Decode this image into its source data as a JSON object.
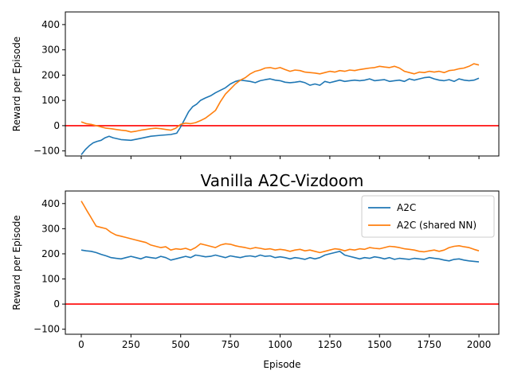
{
  "chart_data": [
    {
      "type": "line",
      "title": "",
      "xlabel": "",
      "ylabel": "Reward per Episode",
      "xlim": [
        -80,
        2100
      ],
      "ylim": [
        -120,
        450
      ],
      "xticks": [
        0,
        250,
        500,
        750,
        1000,
        1250,
        1500,
        1750,
        2000
      ],
      "yticks": [
        -100,
        0,
        100,
        200,
        300,
        400
      ],
      "show_x_tick_labels": false,
      "grid": false,
      "legend": "none",
      "hline": {
        "y": 0,
        "color": "#ff0000"
      },
      "series": [
        {
          "name": "",
          "color": "#1f77b4",
          "x": [
            0,
            20,
            40,
            60,
            80,
            100,
            120,
            140,
            160,
            200,
            250,
            300,
            350,
            400,
            450,
            480,
            500,
            520,
            540,
            560,
            580,
            600,
            625,
            650,
            675,
            700,
            725,
            750,
            775,
            800,
            825,
            850,
            875,
            900,
            925,
            950,
            975,
            1000,
            1025,
            1050,
            1075,
            1100,
            1125,
            1150,
            1175,
            1200,
            1225,
            1250,
            1275,
            1300,
            1325,
            1350,
            1375,
            1400,
            1425,
            1450,
            1475,
            1500,
            1525,
            1550,
            1575,
            1600,
            1625,
            1650,
            1675,
            1700,
            1725,
            1750,
            1775,
            1800,
            1825,
            1850,
            1875,
            1900,
            1925,
            1950,
            1975,
            2000
          ],
          "values": [
            -115,
            -95,
            -80,
            -68,
            -62,
            -58,
            -48,
            -42,
            -48,
            -55,
            -58,
            -50,
            -42,
            -38,
            -35,
            -30,
            -5,
            25,
            55,
            75,
            85,
            100,
            110,
            118,
            130,
            140,
            150,
            165,
            175,
            180,
            178,
            175,
            170,
            178,
            182,
            185,
            180,
            178,
            172,
            170,
            172,
            175,
            170,
            160,
            165,
            160,
            175,
            170,
            175,
            180,
            175,
            178,
            180,
            178,
            180,
            185,
            178,
            180,
            182,
            175,
            178,
            180,
            175,
            185,
            180,
            185,
            190,
            192,
            185,
            180,
            178,
            182,
            175,
            185,
            180,
            178,
            180,
            188
          ]
        },
        {
          "name": "",
          "color": "#ff7f0e",
          "x": [
            0,
            25,
            50,
            75,
            100,
            125,
            150,
            175,
            200,
            225,
            250,
            275,
            300,
            325,
            350,
            375,
            400,
            425,
            450,
            475,
            500,
            525,
            550,
            575,
            600,
            625,
            650,
            675,
            700,
            725,
            750,
            775,
            800,
            825,
            850,
            875,
            900,
            925,
            950,
            975,
            1000,
            1025,
            1050,
            1075,
            1100,
            1125,
            1150,
            1175,
            1200,
            1225,
            1250,
            1275,
            1300,
            1325,
            1350,
            1375,
            1400,
            1425,
            1450,
            1475,
            1500,
            1525,
            1550,
            1575,
            1600,
            1625,
            1650,
            1675,
            1700,
            1725,
            1750,
            1775,
            1800,
            1825,
            1850,
            1875,
            1900,
            1925,
            1950,
            1975,
            2000
          ],
          "values": [
            15,
            8,
            5,
            0,
            -5,
            -10,
            -12,
            -15,
            -18,
            -20,
            -25,
            -22,
            -18,
            -15,
            -12,
            -10,
            -12,
            -15,
            -18,
            -10,
            5,
            10,
            8,
            12,
            20,
            30,
            45,
            60,
            95,
            125,
            145,
            165,
            180,
            190,
            205,
            215,
            220,
            228,
            230,
            225,
            230,
            222,
            215,
            220,
            218,
            212,
            210,
            208,
            205,
            210,
            215,
            212,
            218,
            215,
            220,
            218,
            222,
            225,
            228,
            230,
            235,
            232,
            230,
            235,
            228,
            215,
            210,
            205,
            212,
            210,
            215,
            212,
            215,
            210,
            218,
            220,
            225,
            228,
            235,
            245,
            240
          ]
        }
      ]
    },
    {
      "type": "line",
      "title": "Vanilla A2C-Vizdoom",
      "xlabel": "Episode",
      "ylabel": "Reward per Episode",
      "xlim": [
        -80,
        2100
      ],
      "ylim": [
        -120,
        450
      ],
      "xticks": [
        0,
        250,
        500,
        750,
        1000,
        1250,
        1500,
        1750,
        2000
      ],
      "yticks": [
        -100,
        0,
        100,
        200,
        300,
        400
      ],
      "show_x_tick_labels": true,
      "grid": false,
      "legend": "top-right",
      "hline": {
        "y": 0,
        "color": "#ff0000"
      },
      "series": [
        {
          "name": "A2C",
          "color": "#1f77b4",
          "x": [
            0,
            25,
            50,
            75,
            100,
            125,
            150,
            175,
            200,
            225,
            250,
            275,
            300,
            325,
            350,
            375,
            400,
            425,
            450,
            475,
            500,
            525,
            550,
            575,
            600,
            625,
            650,
            675,
            700,
            725,
            750,
            775,
            800,
            825,
            850,
            875,
            900,
            925,
            950,
            975,
            1000,
            1025,
            1050,
            1075,
            1100,
            1125,
            1150,
            1175,
            1200,
            1225,
            1250,
            1275,
            1300,
            1325,
            1350,
            1375,
            1400,
            1425,
            1450,
            1475,
            1500,
            1525,
            1550,
            1575,
            1600,
            1625,
            1650,
            1675,
            1700,
            1725,
            1750,
            1775,
            1800,
            1825,
            1850,
            1875,
            1900,
            1925,
            1950,
            1975,
            2000
          ],
          "values": [
            215,
            212,
            210,
            205,
            198,
            192,
            185,
            182,
            180,
            185,
            190,
            185,
            180,
            188,
            185,
            182,
            190,
            185,
            175,
            180,
            185,
            190,
            185,
            195,
            192,
            188,
            190,
            195,
            190,
            185,
            192,
            188,
            185,
            190,
            192,
            188,
            195,
            190,
            192,
            185,
            188,
            185,
            180,
            185,
            182,
            178,
            185,
            180,
            185,
            195,
            200,
            205,
            210,
            195,
            190,
            185,
            180,
            185,
            182,
            188,
            185,
            180,
            185,
            178,
            182,
            180,
            178,
            182,
            180,
            178,
            185,
            182,
            180,
            175,
            172,
            178,
            180,
            175,
            172,
            170,
            168
          ]
        },
        {
          "name": "A2C (shared NN)",
          "color": "#ff7f0e",
          "x": [
            0,
            15,
            30,
            45,
            60,
            75,
            100,
            125,
            150,
            175,
            200,
            225,
            250,
            275,
            300,
            325,
            350,
            375,
            400,
            425,
            450,
            475,
            500,
            525,
            550,
            575,
            600,
            625,
            650,
            675,
            700,
            725,
            750,
            775,
            800,
            825,
            850,
            875,
            900,
            925,
            950,
            975,
            1000,
            1025,
            1050,
            1075,
            1100,
            1125,
            1150,
            1175,
            1200,
            1225,
            1250,
            1275,
            1300,
            1325,
            1350,
            1375,
            1400,
            1425,
            1450,
            1475,
            1500,
            1525,
            1550,
            1575,
            1600,
            1625,
            1650,
            1675,
            1700,
            1725,
            1750,
            1775,
            1800,
            1825,
            1850,
            1875,
            1900,
            1925,
            1950,
            1975,
            2000
          ],
          "values": [
            410,
            390,
            370,
            350,
            330,
            310,
            305,
            300,
            285,
            275,
            270,
            265,
            260,
            255,
            250,
            245,
            235,
            230,
            225,
            228,
            215,
            220,
            218,
            222,
            215,
            225,
            240,
            235,
            230,
            225,
            235,
            240,
            238,
            232,
            228,
            225,
            220,
            225,
            222,
            218,
            220,
            215,
            218,
            215,
            210,
            215,
            218,
            212,
            215,
            210,
            205,
            210,
            215,
            220,
            218,
            212,
            218,
            215,
            220,
            218,
            225,
            222,
            220,
            225,
            230,
            228,
            225,
            220,
            218,
            215,
            210,
            208,
            212,
            215,
            210,
            215,
            225,
            230,
            232,
            228,
            225,
            218,
            212
          ]
        }
      ]
    }
  ]
}
